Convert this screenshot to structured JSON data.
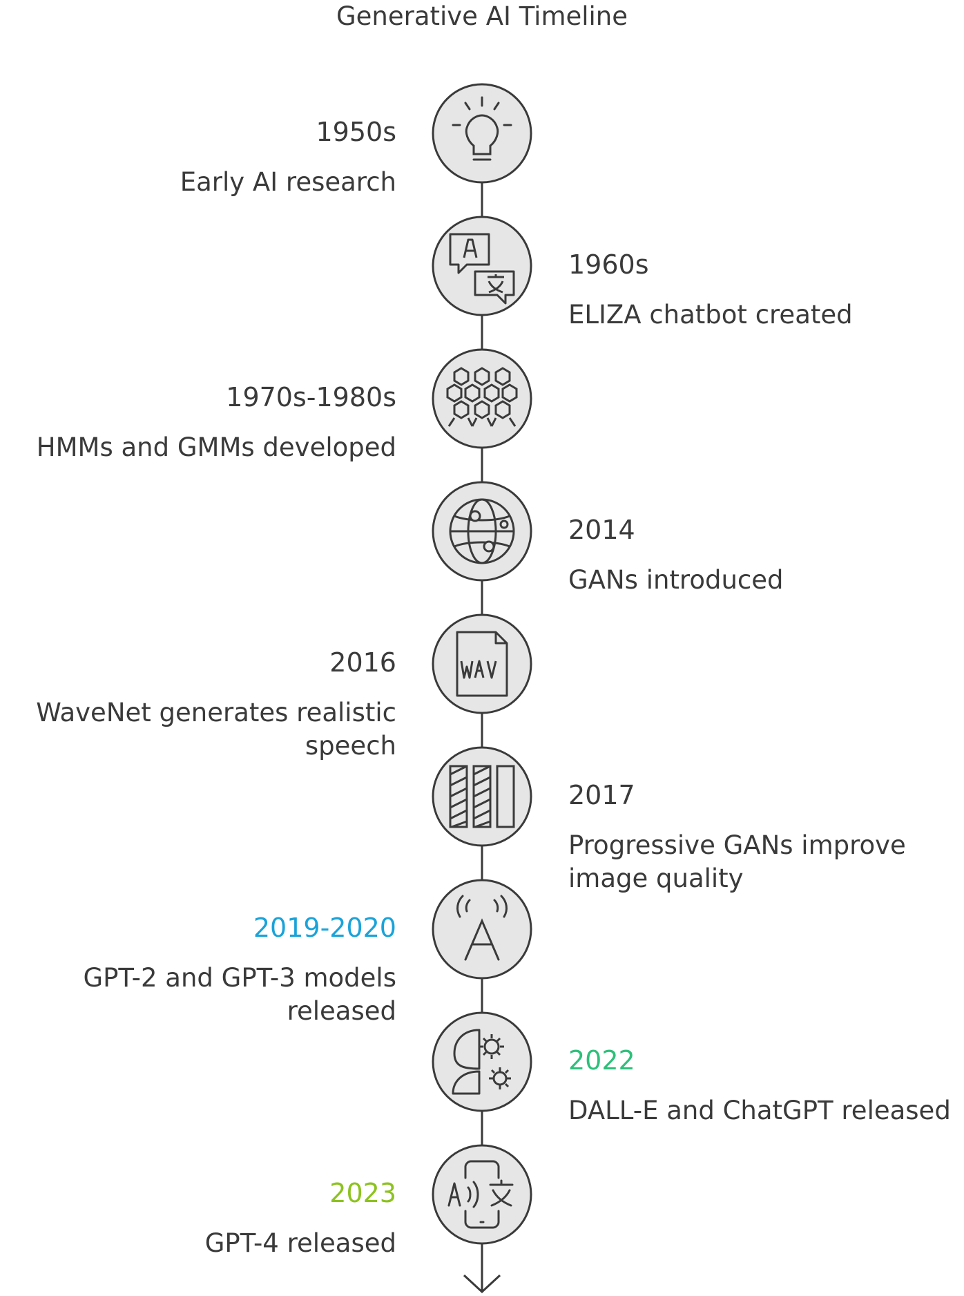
{
  "title": "Generative AI Timeline",
  "events": [
    {
      "year": "1950s",
      "description": "Early AI research",
      "side": "left",
      "icon": "lightbulb-icon",
      "year_color": "#3a3a3a"
    },
    {
      "year": "1960s",
      "description": "ELIZA chatbot created",
      "side": "right",
      "icon": "translate-speech-icon",
      "year_color": "#3a3a3a"
    },
    {
      "year": "1970s-1980s",
      "description": "HMMs and GMMs developed",
      "side": "left",
      "icon": "hexagon-grid-icon",
      "year_color": "#3a3a3a"
    },
    {
      "year": "2014",
      "description": "GANs introduced",
      "side": "right",
      "icon": "network-globe-icon",
      "year_color": "#3a3a3a"
    },
    {
      "year": "2016",
      "description": "WaveNet generates realistic speech",
      "side": "left",
      "icon": "wav-file-icon",
      "year_color": "#3a3a3a"
    },
    {
      "year": "2017",
      "description": "Progressive GANs improve image quality",
      "side": "right",
      "icon": "columns-icon",
      "year_color": "#3a3a3a"
    },
    {
      "year": "2019-2020",
      "description": "GPT-2 and GPT-3 models released",
      "side": "left",
      "icon": "ai-signal-icon",
      "year_color": "#1aa3d9"
    },
    {
      "year": "2022",
      "description": "DALL-E and ChatGPT released",
      "side": "right",
      "icon": "head-gears-icon",
      "year_color": "#2ebf7a"
    },
    {
      "year": "2023",
      "description": "GPT-4 released",
      "side": "left",
      "icon": "phone-translate-icon",
      "year_color": "#8cc21f"
    }
  ]
}
